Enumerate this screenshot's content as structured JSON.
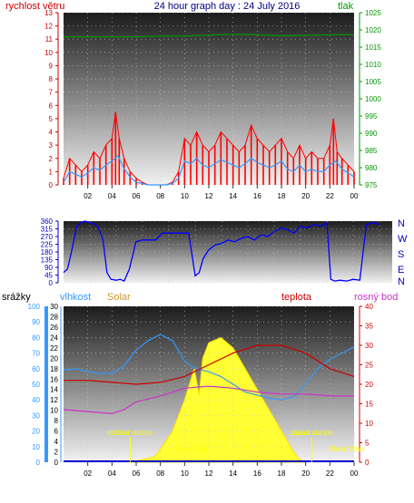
{
  "chart_data": [
    {
      "type": "line",
      "title": "24 hour graph day : 24 July 2016",
      "ylabel_left": "rychlost větru",
      "ylabel_right": "tlak",
      "x_ticks": [
        "02",
        "04",
        "06",
        "08",
        "10",
        "12",
        "14",
        "16",
        "18",
        "20",
        "22",
        "00"
      ],
      "x_range_hours": [
        0,
        24
      ],
      "y_left": {
        "range": [
          0,
          13
        ],
        "ticks": [
          0,
          1,
          2,
          3,
          4,
          5,
          6,
          7,
          8,
          9,
          10,
          11,
          12,
          13
        ]
      },
      "y_right": {
        "range": [
          975,
          1025
        ],
        "ticks": [
          975,
          980,
          985,
          990,
          995,
          1000,
          1005,
          1010,
          1015,
          1020,
          1025
        ]
      },
      "grid": true,
      "series": [
        {
          "name": "",
          "axis": "left",
          "color": "#ff0000",
          "style": "gust",
          "hours": [
            0,
            0.5,
            1,
            1.5,
            2,
            2.5,
            3,
            3.5,
            4,
            4.3,
            4.6,
            5,
            5.5,
            6,
            6.5,
            7,
            7.5,
            8,
            8.5,
            9,
            9.5,
            10,
            10.5,
            11,
            11.5,
            12,
            12.5,
            13,
            13.5,
            14,
            14.5,
            15,
            15.5,
            16,
            16.5,
            17,
            17.5,
            18,
            18.5,
            19,
            19.5,
            20,
            20.5,
            21,
            21.5,
            22,
            22.3,
            22.6,
            23,
            23.5,
            24
          ],
          "values": [
            0.5,
            2,
            1.5,
            1,
            1.5,
            2.5,
            2,
            3,
            3.5,
            5.5,
            3.5,
            2,
            1,
            0.5,
            0.2,
            0,
            0,
            0,
            0,
            0.2,
            1,
            3.5,
            3,
            4,
            3,
            2.5,
            3,
            4,
            3.5,
            3,
            2.5,
            3,
            4.5,
            3.5,
            3,
            2.5,
            3,
            3.5,
            2.5,
            2,
            3,
            2,
            2.5,
            2,
            2,
            3,
            5,
            2.5,
            2,
            1.5,
            1
          ]
        },
        {
          "name": "",
          "axis": "left",
          "color": "#3399ff",
          "style": "line",
          "hours": [
            0,
            0.5,
            1,
            1.5,
            2,
            2.5,
            3,
            3.5,
            4,
            4.5,
            5,
            5.5,
            6,
            6.5,
            7,
            7.5,
            8,
            8.5,
            9,
            9.5,
            10,
            10.5,
            11,
            11.5,
            12,
            12.5,
            13,
            13.5,
            14,
            14.5,
            15,
            15.5,
            16,
            16.5,
            17,
            17.5,
            18,
            18.5,
            19,
            19.5,
            20,
            20.5,
            21,
            21.5,
            22,
            22.5,
            23,
            23.5,
            24
          ],
          "values": [
            0.2,
            1,
            0.8,
            0.6,
            0.9,
            1.3,
            1.1,
            1.5,
            1.8,
            2.2,
            1.2,
            0.6,
            0.2,
            0.1,
            0,
            0,
            0,
            0,
            0.1,
            0.5,
            1.8,
            1.6,
            2,
            1.5,
            1.3,
            1.6,
            1.9,
            1.7,
            1.5,
            1.3,
            1.6,
            2,
            1.7,
            1.5,
            1.3,
            1.5,
            1.8,
            1.2,
            1,
            1.5,
            1,
            1.2,
            1,
            1,
            1.5,
            1.8,
            1.2,
            0.9,
            0.6
          ]
        },
        {
          "name": "",
          "axis": "right",
          "color": "#009900",
          "style": "line",
          "hours": [
            0,
            2,
            4,
            6,
            8,
            10,
            12,
            14,
            16,
            18,
            20,
            22,
            24
          ],
          "values": [
            1018,
            1018,
            1018,
            1018,
            1018.2,
            1018.2,
            1018.5,
            1018.7,
            1018.6,
            1018.3,
            1018.4,
            1018.6,
            1018.6
          ]
        }
      ]
    },
    {
      "type": "scatter",
      "title": "",
      "ylabel_right": [
        "N",
        "W",
        "S",
        "E",
        "N"
      ],
      "x_range_hours": [
        0,
        24
      ],
      "y_left": {
        "range": [
          0,
          360
        ],
        "ticks": [
          0,
          45,
          90,
          135,
          180,
          225,
          270,
          315,
          360
        ]
      },
      "grid": true,
      "series": [
        {
          "name": "",
          "color": "#0000ff",
          "hours": [
            0,
            0.3,
            0.6,
            1,
            1.3,
            1.6,
            2,
            2.3,
            2.6,
            3,
            3.3,
            3.6,
            4,
            4.3,
            4.6,
            5,
            5.5,
            6,
            6.5,
            7,
            7.5,
            8,
            8.5,
            9,
            9.5,
            10,
            10.3,
            10.6,
            11,
            11.5,
            12,
            12.5,
            13,
            13.5,
            14,
            14.5,
            15,
            15.5,
            16,
            16.5,
            17,
            17.5,
            18,
            18.5,
            19,
            19.5,
            20,
            20.3,
            20.6,
            21,
            21.5,
            22,
            22.5,
            23,
            23.5,
            24
          ],
          "values": [
            60,
            80,
            180,
            330,
            350,
            360,
            350,
            345,
            330,
            250,
            60,
            20,
            15,
            20,
            10,
            80,
            240,
            250,
            250,
            250,
            290,
            290,
            290,
            290,
            290,
            40,
            60,
            140,
            190,
            220,
            230,
            250,
            240,
            260,
            270,
            250,
            280,
            270,
            300,
            320,
            310,
            290,
            330,
            320,
            340,
            330,
            350,
            20,
            10,
            15,
            10,
            20,
            15,
            340,
            350,
            340
          ]
        }
      ]
    },
    {
      "type": "line",
      "title": "",
      "ylabels": [
        "srážky",
        "vlhkost",
        "Solar",
        "teplota",
        "rosný bod"
      ],
      "x_range_hours": [
        0,
        24
      ],
      "y_rain": {
        "range": [
          0,
          100
        ],
        "ticks": [
          0,
          10,
          20,
          30,
          40,
          50,
          60,
          70,
          80,
          90,
          100
        ]
      },
      "y_humidity": {
        "range": [
          0,
          30
        ],
        "ticks": [
          0,
          2,
          4,
          6,
          8,
          10,
          12,
          14,
          16,
          18,
          20,
          22,
          24,
          26,
          28,
          30
        ]
      },
      "y_temp": {
        "range": [
          0,
          40
        ],
        "ticks": [
          0,
          5,
          10,
          15,
          20,
          25,
          30,
          35,
          40
        ]
      },
      "annotations": [
        "východ slunce",
        "Moon Set",
        "západ slunce",
        "Moon Rise"
      ],
      "grid": true,
      "series": [
        {
          "name": "",
          "axis": "humidity",
          "color": "#3399ff",
          "hours": [
            0,
            1,
            2,
            3,
            4,
            5,
            6,
            7,
            8,
            9,
            10,
            10.5,
            11,
            12,
            13,
            14,
            15,
            16,
            17,
            18,
            19,
            20,
            21,
            22,
            23,
            24
          ],
          "values": [
            59,
            60,
            58,
            57,
            57,
            62,
            72,
            78,
            82,
            78,
            65,
            62,
            60,
            58,
            55,
            50,
            45,
            43,
            41,
            40,
            42,
            50,
            60,
            66,
            70,
            74
          ]
        },
        {
          "name": "",
          "axis": "temp",
          "color": "#cc0000",
          "hours": [
            0,
            2,
            4,
            6,
            8,
            10,
            12,
            14,
            16,
            18,
            20,
            22,
            24
          ],
          "values": [
            21,
            21,
            20.5,
            20,
            20.5,
            22,
            25,
            28,
            30,
            30,
            28,
            24,
            22
          ]
        },
        {
          "name": "",
          "axis": "temp",
          "color": "#cc33cc",
          "hours": [
            0,
            2,
            4,
            5,
            6,
            8,
            10,
            12,
            14,
            16,
            18,
            20,
            22,
            24
          ],
          "values": [
            13.5,
            13,
            12.5,
            13.5,
            15.5,
            17,
            19,
            19.5,
            19,
            18,
            17.5,
            17.5,
            17,
            17
          ]
        },
        {
          "name": "",
          "axis": "solar",
          "color": "#ffff33",
          "hours": [
            5.5,
            6.5,
            7.5,
            8,
            9,
            10,
            10.8,
            11.2,
            11.5,
            12,
            13,
            14,
            15,
            16,
            17,
            18,
            19,
            19.5,
            20
          ],
          "values": [
            0,
            0.5,
            1,
            2.5,
            6,
            12,
            18,
            13,
            20,
            23,
            24,
            22,
            18,
            14,
            10,
            6,
            2,
            0.5,
            0
          ]
        }
      ]
    }
  ]
}
